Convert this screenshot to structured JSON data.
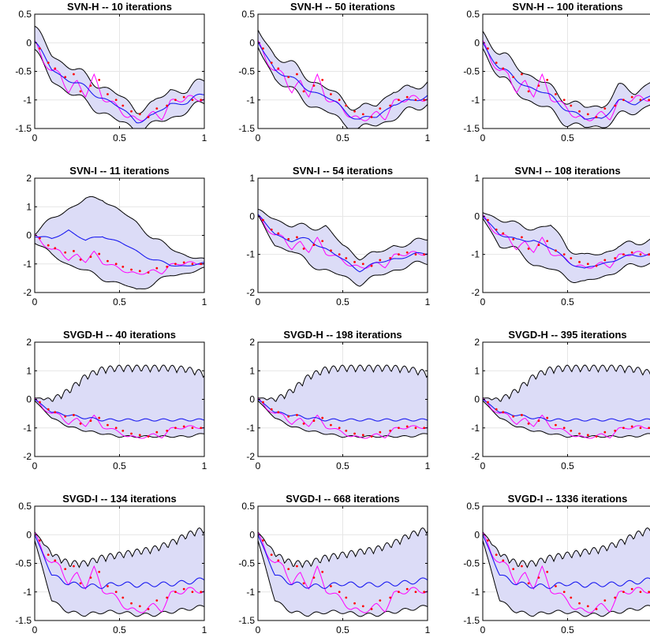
{
  "figure": {
    "colors": {
      "band_fill": "#dcdcf7",
      "band_edge": "#000000",
      "mean": "#1a1af0",
      "true": "#ff00ff",
      "obs": "#ff0000",
      "grid": "#e6e6e6"
    },
    "x_ticks": [
      "0",
      "0.5",
      "1"
    ]
  },
  "chart_data": [
    {
      "type": "line",
      "row": 0,
      "col": 0,
      "title": "SVN-H -- 10 iterations",
      "x_range": [
        0,
        1
      ],
      "ylim": [
        -1.5,
        0.5
      ],
      "y_ticks": [
        0.5,
        0,
        -0.5,
        -1,
        -1.5
      ],
      "y_tick_labels": [
        "0.5",
        "0",
        "-0.5",
        "-1",
        "-1.5"
      ],
      "method": "SVN-H",
      "band": {
        "x": [
          0,
          0.1,
          0.2,
          0.3,
          0.4,
          0.5,
          0.6,
          0.7,
          0.8,
          0.9,
          1
        ],
        "upper": [
          0.25,
          -0.2,
          -0.4,
          -0.6,
          -0.75,
          -0.95,
          -1.15,
          -1.1,
          -0.8,
          -0.85,
          -0.65
        ],
        "lower": [
          -0.15,
          -0.65,
          -0.85,
          -1.05,
          -1.2,
          -1.4,
          -1.5,
          -1.45,
          -1.3,
          -1.2,
          -1.05
        ]
      },
      "mean": {
        "x": [
          0,
          0.1,
          0.2,
          0.3,
          0.4,
          0.5,
          0.6,
          0.7,
          0.8,
          0.9,
          1
        ],
        "y": [
          0.0,
          -0.45,
          -0.65,
          -0.8,
          -0.95,
          -1.15,
          -1.35,
          -1.3,
          -1.05,
          -1.05,
          -0.9
        ]
      }
    },
    {
      "type": "line",
      "row": 0,
      "col": 1,
      "title": "SVN-H -- 50 iterations",
      "x_range": [
        0,
        1
      ],
      "ylim": [
        -1.5,
        0.5
      ],
      "y_ticks": [
        0.5,
        0,
        -0.5,
        -1,
        -1.5
      ],
      "y_tick_labels": [
        "0.5",
        "0",
        "-0.5",
        "-1",
        "-1.5"
      ],
      "method": "SVN-H",
      "band": {
        "x": [
          0,
          0.1,
          0.2,
          0.3,
          0.4,
          0.5,
          0.6,
          0.7,
          0.8,
          0.9,
          1
        ],
        "upper": [
          0.2,
          -0.2,
          -0.4,
          -0.6,
          -0.8,
          -1.0,
          -1.15,
          -1.1,
          -0.8,
          -0.85,
          -0.65
        ],
        "lower": [
          -0.1,
          -0.6,
          -0.85,
          -1.05,
          -1.2,
          -1.4,
          -1.5,
          -1.45,
          -1.3,
          -1.2,
          -1.05
        ]
      },
      "mean": {
        "x": [
          0,
          0.1,
          0.2,
          0.3,
          0.4,
          0.5,
          0.6,
          0.7,
          0.8,
          0.9,
          1
        ],
        "y": [
          0.0,
          -0.45,
          -0.65,
          -0.8,
          -0.95,
          -1.15,
          -1.35,
          -1.3,
          -1.05,
          -1.05,
          -0.9
        ]
      }
    },
    {
      "type": "line",
      "row": 0,
      "col": 2,
      "title": "SVN-H -- 100 iterations",
      "x_range": [
        0,
        1
      ],
      "ylim": [
        -1.5,
        0.5
      ],
      "y_ticks": [
        0.5,
        0,
        -0.5,
        -1,
        -1.5
      ],
      "y_tick_labels": [
        "0.5",
        "0",
        "-0.5",
        "-1",
        "-1.5"
      ],
      "method": "SVN-H",
      "band": {
        "x": [
          0,
          0.1,
          0.2,
          0.3,
          0.4,
          0.5,
          0.6,
          0.7,
          0.8,
          0.9,
          1
        ],
        "upper": [
          0.2,
          -0.2,
          -0.4,
          -0.6,
          -0.8,
          -1.0,
          -1.15,
          -1.1,
          -0.8,
          -0.85,
          -0.65
        ],
        "lower": [
          -0.1,
          -0.6,
          -0.85,
          -1.05,
          -1.2,
          -1.4,
          -1.5,
          -1.45,
          -1.3,
          -1.2,
          -1.05
        ]
      },
      "mean": {
        "x": [
          0,
          0.1,
          0.2,
          0.3,
          0.4,
          0.5,
          0.6,
          0.7,
          0.8,
          0.9,
          1
        ],
        "y": [
          0.0,
          -0.45,
          -0.65,
          -0.8,
          -0.95,
          -1.15,
          -1.35,
          -1.3,
          -1.05,
          -1.05,
          -0.9
        ]
      }
    },
    {
      "type": "line",
      "row": 1,
      "col": 0,
      "title": "SVN-I -- 11 iterations",
      "x_range": [
        0,
        1
      ],
      "ylim": [
        -2,
        2
      ],
      "y_ticks": [
        2,
        1,
        0,
        -1,
        -2
      ],
      "y_tick_labels": [
        "2",
        "1",
        "0",
        "-1",
        "-2"
      ],
      "method": "SVN-I",
      "band": {
        "x": [
          0,
          0.1,
          0.2,
          0.3,
          0.4,
          0.5,
          0.6,
          0.7,
          0.8,
          0.9,
          1
        ],
        "upper": [
          0.1,
          0.55,
          0.95,
          1.25,
          1.3,
          0.85,
          0.45,
          -0.1,
          -0.45,
          -0.7,
          -0.9
        ],
        "lower": [
          -0.2,
          -0.7,
          -1.0,
          -1.25,
          -1.5,
          -1.7,
          -1.9,
          -1.7,
          -1.4,
          -1.3,
          -1.2
        ]
      },
      "mean": {
        "x": [
          0,
          0.1,
          0.2,
          0.3,
          0.4,
          0.5,
          0.6,
          0.7,
          0.8,
          0.9,
          1
        ],
        "y": [
          0.0,
          -0.15,
          0.2,
          -0.2,
          0.0,
          -0.25,
          -0.55,
          -0.85,
          -1.05,
          -1.05,
          -1.0
        ]
      }
    },
    {
      "type": "line",
      "row": 1,
      "col": 1,
      "title": "SVN-I -- 54 iterations",
      "x_range": [
        0,
        1
      ],
      "ylim": [
        -2,
        1
      ],
      "y_ticks": [
        1,
        0,
        -1,
        -2
      ],
      "y_tick_labels": [
        "1",
        "0",
        "-1",
        "-2"
      ],
      "method": "SVN-I",
      "band": {
        "x": [
          0,
          0.1,
          0.2,
          0.3,
          0.4,
          0.5,
          0.6,
          0.7,
          0.8,
          0.9,
          1
        ],
        "upper": [
          0.1,
          -0.05,
          -0.25,
          -0.3,
          -0.25,
          -0.8,
          -1.05,
          -1.0,
          -0.75,
          -0.75,
          -0.55
        ],
        "lower": [
          -0.05,
          -0.75,
          -0.9,
          -1.25,
          -1.4,
          -1.6,
          -1.75,
          -1.6,
          -1.4,
          -1.3,
          -1.2
        ]
      },
      "mean": {
        "x": [
          0,
          0.1,
          0.2,
          0.3,
          0.4,
          0.5,
          0.6,
          0.7,
          0.8,
          0.9,
          1
        ],
        "y": [
          0.0,
          -0.45,
          -0.65,
          -0.6,
          -0.85,
          -1.15,
          -1.4,
          -1.25,
          -1.1,
          -1.05,
          -0.95
        ]
      }
    },
    {
      "type": "line",
      "row": 1,
      "col": 2,
      "title": "SVN-I -- 108 iterations",
      "x_range": [
        0,
        1
      ],
      "ylim": [
        -2,
        1
      ],
      "y_ticks": [
        1,
        0,
        -1,
        -2
      ],
      "y_tick_labels": [
        "1",
        "0",
        "-1",
        "-2"
      ],
      "method": "SVN-I",
      "band": {
        "x": [
          0,
          0.1,
          0.2,
          0.3,
          0.4,
          0.5,
          0.6,
          0.7,
          0.8,
          0.9,
          1
        ],
        "upper": [
          0.1,
          -0.05,
          -0.25,
          -0.3,
          -0.25,
          -0.8,
          -1.05,
          -1.0,
          -0.75,
          -0.75,
          -0.55
        ],
        "lower": [
          -0.05,
          -0.75,
          -0.9,
          -1.25,
          -1.4,
          -1.6,
          -1.75,
          -1.6,
          -1.4,
          -1.3,
          -1.2
        ]
      },
      "mean": {
        "x": [
          0,
          0.1,
          0.2,
          0.3,
          0.4,
          0.5,
          0.6,
          0.7,
          0.8,
          0.9,
          1
        ],
        "y": [
          0.0,
          -0.45,
          -0.65,
          -0.6,
          -0.85,
          -1.15,
          -1.4,
          -1.25,
          -1.1,
          -1.05,
          -0.95
        ]
      }
    },
    {
      "type": "line",
      "row": 2,
      "col": 0,
      "title": "SVGD-H -- 40 iterations",
      "x_range": [
        0,
        1
      ],
      "ylim": [
        -2,
        2
      ],
      "y_ticks": [
        2,
        1,
        0,
        -1,
        -2
      ],
      "y_tick_labels": [
        "2",
        "1",
        "0",
        "-1",
        "-2"
      ],
      "method": "SVGD",
      "band": {
        "x": [
          0,
          0.1,
          0.2,
          0.3,
          0.4,
          0.5,
          0.6,
          0.7,
          0.8,
          0.9,
          1
        ],
        "upper": [
          0.05,
          0.05,
          0.4,
          0.9,
          1.15,
          1.2,
          1.2,
          1.2,
          1.2,
          1.15,
          1.0
        ],
        "lower": [
          -0.05,
          -0.65,
          -0.95,
          -1.1,
          -1.2,
          -1.3,
          -1.3,
          -1.3,
          -1.3,
          -1.3,
          -1.2
        ]
      },
      "mean": {
        "x": [
          0,
          0.1,
          0.2,
          0.3,
          0.4,
          0.5,
          0.6,
          0.7,
          0.8,
          0.9,
          1
        ],
        "y": [
          0.0,
          -0.45,
          -0.55,
          -0.65,
          -0.72,
          -0.72,
          -0.72,
          -0.72,
          -0.72,
          -0.72,
          -0.72
        ]
      }
    },
    {
      "type": "line",
      "row": 2,
      "col": 1,
      "title": "SVGD-H -- 198 iterations",
      "x_range": [
        0,
        1
      ],
      "ylim": [
        -2,
        2
      ],
      "y_ticks": [
        2,
        1,
        0,
        -1,
        -2
      ],
      "y_tick_labels": [
        "2",
        "1",
        "0",
        "-1",
        "-2"
      ],
      "method": "SVGD",
      "band": {
        "x": [
          0,
          0.1,
          0.2,
          0.3,
          0.4,
          0.5,
          0.6,
          0.7,
          0.8,
          0.9,
          1
        ],
        "upper": [
          0.05,
          0.05,
          0.4,
          0.9,
          1.15,
          1.2,
          1.2,
          1.2,
          1.2,
          1.15,
          1.0
        ],
        "lower": [
          -0.05,
          -0.65,
          -0.95,
          -1.1,
          -1.2,
          -1.3,
          -1.3,
          -1.3,
          -1.3,
          -1.3,
          -1.2
        ]
      },
      "mean": {
        "x": [
          0,
          0.1,
          0.2,
          0.3,
          0.4,
          0.5,
          0.6,
          0.7,
          0.8,
          0.9,
          1
        ],
        "y": [
          0.0,
          -0.45,
          -0.55,
          -0.65,
          -0.72,
          -0.72,
          -0.72,
          -0.72,
          -0.72,
          -0.72,
          -0.72
        ]
      }
    },
    {
      "type": "line",
      "row": 2,
      "col": 2,
      "title": "SVGD-H -- 395 iterations",
      "x_range": [
        0,
        1
      ],
      "ylim": [
        -2,
        2
      ],
      "y_ticks": [
        2,
        1,
        0,
        -1,
        -2
      ],
      "y_tick_labels": [
        "2",
        "1",
        "0",
        "-1",
        "-2"
      ],
      "method": "SVGD",
      "band": {
        "x": [
          0,
          0.1,
          0.2,
          0.3,
          0.4,
          0.5,
          0.6,
          0.7,
          0.8,
          0.9,
          1
        ],
        "upper": [
          0.05,
          0.05,
          0.4,
          0.9,
          1.15,
          1.2,
          1.2,
          1.2,
          1.2,
          1.15,
          1.0
        ],
        "lower": [
          -0.05,
          -0.65,
          -0.95,
          -1.1,
          -1.2,
          -1.3,
          -1.3,
          -1.3,
          -1.3,
          -1.3,
          -1.2
        ]
      },
      "mean": {
        "x": [
          0,
          0.1,
          0.2,
          0.3,
          0.4,
          0.5,
          0.6,
          0.7,
          0.8,
          0.9,
          1
        ],
        "y": [
          0.0,
          -0.45,
          -0.55,
          -0.65,
          -0.72,
          -0.72,
          -0.72,
          -0.72,
          -0.72,
          -0.72,
          -0.72
        ]
      }
    },
    {
      "type": "line",
      "row": 3,
      "col": 0,
      "title": "SVGD-I -- 134 iterations",
      "x_range": [
        0,
        1
      ],
      "ylim": [
        -1.5,
        0.5
      ],
      "y_ticks": [
        0.5,
        0,
        -0.5,
        -1,
        -1.5
      ],
      "y_tick_labels": [
        "0.5",
        "0",
        "-0.5",
        "-1",
        "-1.5"
      ],
      "method": "SVGD",
      "band": {
        "x": [
          0,
          0.1,
          0.2,
          0.3,
          0.4,
          0.5,
          0.6,
          0.7,
          0.8,
          0.9,
          1
        ],
        "upper": [
          0.05,
          -0.3,
          -0.45,
          -0.45,
          -0.35,
          -0.3,
          -0.25,
          -0.2,
          -0.1,
          0.05,
          0.15
        ],
        "lower": [
          -0.1,
          -1.15,
          -1.35,
          -1.4,
          -1.35,
          -1.35,
          -1.4,
          -1.4,
          -1.35,
          -1.3,
          -1.25
        ]
      },
      "mean": {
        "x": [
          0,
          0.1,
          0.2,
          0.3,
          0.4,
          0.5,
          0.6,
          0.7,
          0.8,
          0.9,
          1
        ],
        "y": [
          0.0,
          -0.7,
          -0.85,
          -0.9,
          -0.9,
          -0.85,
          -0.88,
          -0.87,
          -0.86,
          -0.83,
          -0.78
        ]
      }
    },
    {
      "type": "line",
      "row": 3,
      "col": 1,
      "title": "SVGD-I -- 668 iterations",
      "x_range": [
        0,
        1
      ],
      "ylim": [
        -1.5,
        0.5
      ],
      "y_ticks": [
        0.5,
        0,
        -0.5,
        -1,
        -1.5
      ],
      "y_tick_labels": [
        "0.5",
        "0",
        "-0.5",
        "-1",
        "-1.5"
      ],
      "method": "SVGD",
      "band": {
        "x": [
          0,
          0.1,
          0.2,
          0.3,
          0.4,
          0.5,
          0.6,
          0.7,
          0.8,
          0.9,
          1
        ],
        "upper": [
          0.05,
          -0.3,
          -0.45,
          -0.45,
          -0.35,
          -0.3,
          -0.25,
          -0.2,
          -0.1,
          0.05,
          0.15
        ],
        "lower": [
          -0.1,
          -1.15,
          -1.35,
          -1.4,
          -1.35,
          -1.35,
          -1.4,
          -1.4,
          -1.35,
          -1.3,
          -1.25
        ]
      },
      "mean": {
        "x": [
          0,
          0.1,
          0.2,
          0.3,
          0.4,
          0.5,
          0.6,
          0.7,
          0.8,
          0.9,
          1
        ],
        "y": [
          0.0,
          -0.7,
          -0.85,
          -0.9,
          -0.9,
          -0.85,
          -0.88,
          -0.87,
          -0.86,
          -0.83,
          -0.78
        ]
      }
    },
    {
      "type": "line",
      "row": 3,
      "col": 2,
      "title": "SVGD-I -- 1336 iterations",
      "x_range": [
        0,
        1
      ],
      "ylim": [
        -1.5,
        0.5
      ],
      "y_ticks": [
        0.5,
        0,
        -0.5,
        -1,
        -1.5
      ],
      "y_tick_labels": [
        "0.5",
        "0",
        "-0.5",
        "-1",
        "-1.5"
      ],
      "method": "SVGD",
      "band": {
        "x": [
          0,
          0.1,
          0.2,
          0.3,
          0.4,
          0.5,
          0.6,
          0.7,
          0.8,
          0.9,
          1
        ],
        "upper": [
          0.05,
          -0.3,
          -0.45,
          -0.45,
          -0.35,
          -0.3,
          -0.25,
          -0.2,
          -0.1,
          0.05,
          0.15
        ],
        "lower": [
          -0.1,
          -1.15,
          -1.35,
          -1.4,
          -1.35,
          -1.35,
          -1.4,
          -1.4,
          -1.35,
          -1.3,
          -1.25
        ]
      },
      "mean": {
        "x": [
          0,
          0.1,
          0.2,
          0.3,
          0.4,
          0.5,
          0.6,
          0.7,
          0.8,
          0.9,
          1
        ],
        "y": [
          0.0,
          -0.7,
          -0.85,
          -0.9,
          -0.9,
          -0.85,
          -0.88,
          -0.87,
          -0.86,
          -0.83,
          -0.78
        ]
      }
    }
  ],
  "true_signal": {
    "x": [
      0,
      0.05,
      0.1,
      0.15,
      0.2,
      0.25,
      0.3,
      0.35,
      0.4,
      0.45,
      0.5,
      0.55,
      0.6,
      0.65,
      0.7,
      0.75,
      0.8,
      0.85,
      0.9,
      0.95,
      1
    ],
    "y": [
      0.0,
      -0.3,
      -0.5,
      -0.55,
      -0.85,
      -0.7,
      -0.9,
      -0.6,
      -0.95,
      -1.05,
      -1.15,
      -1.3,
      -1.35,
      -1.3,
      -1.25,
      -1.3,
      -1.05,
      -1.0,
      -0.95,
      -1.0,
      -0.95
    ]
  },
  "observations": {
    "x": [
      0.03,
      0.08,
      0.12,
      0.18,
      0.23,
      0.27,
      0.33,
      0.38,
      0.43,
      0.48,
      0.52,
      0.57,
      0.62,
      0.67,
      0.72,
      0.78,
      0.83,
      0.88,
      0.93,
      0.98
    ],
    "y": [
      -0.1,
      -0.35,
      -0.45,
      -0.6,
      -0.55,
      -0.85,
      -0.75,
      -0.65,
      -0.9,
      -1.0,
      -1.1,
      -1.2,
      -1.25,
      -1.3,
      -1.15,
      -1.1,
      -1.0,
      -0.95,
      -1.0,
      -1.0
    ]
  }
}
